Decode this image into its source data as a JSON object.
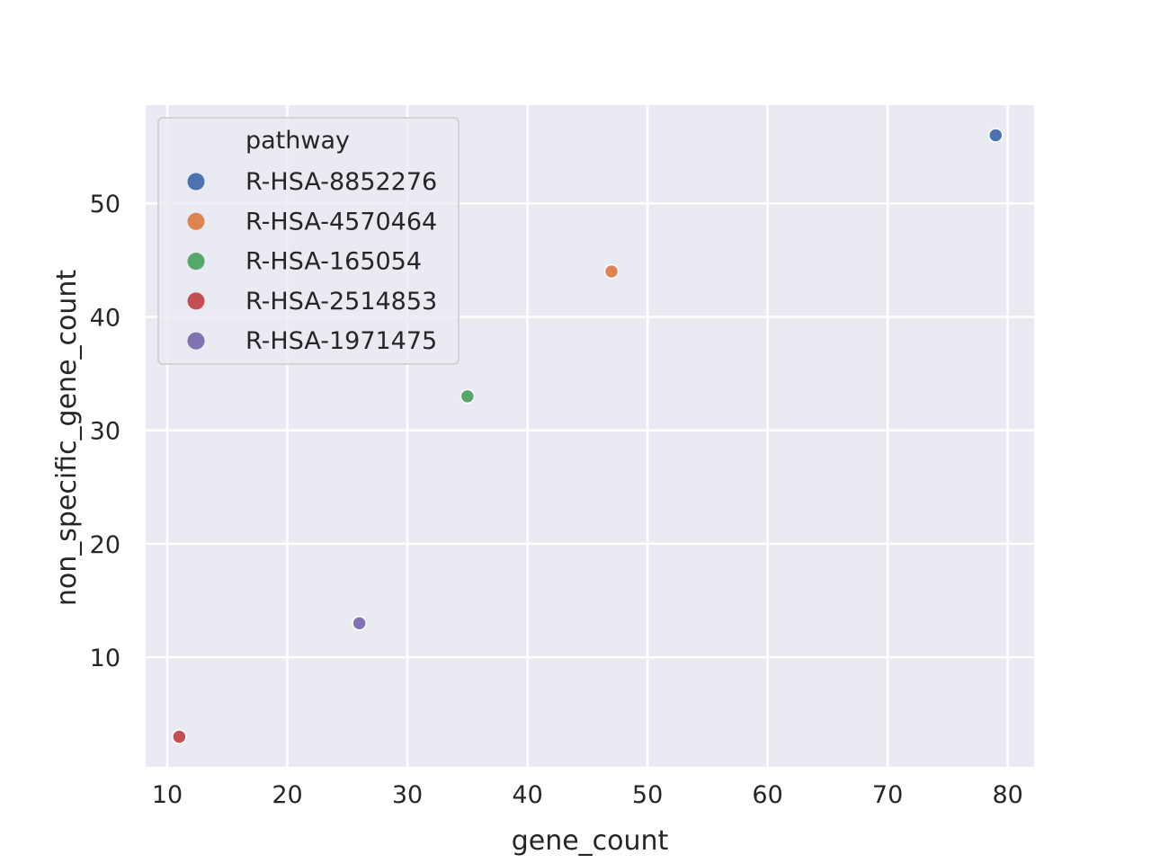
{
  "chart_data": {
    "type": "scatter",
    "xlabel": "gene_count",
    "ylabel": "non_specific_gene_count",
    "xlim": [
      8.2,
      82.2
    ],
    "ylim": [
      0.35,
      58.65
    ],
    "xticks": [
      10,
      20,
      30,
      40,
      50,
      60,
      70,
      80
    ],
    "yticks": [
      10,
      20,
      30,
      40,
      50
    ],
    "grid": true,
    "legend": {
      "title": "pathway",
      "placement": "top-left"
    },
    "series": [
      {
        "name": "R-HSA-8852276",
        "color": "#4c72b0",
        "points": [
          {
            "x": 79,
            "y": 56
          }
        ]
      },
      {
        "name": "R-HSA-4570464",
        "color": "#dd8452",
        "points": [
          {
            "x": 47,
            "y": 44
          }
        ]
      },
      {
        "name": "R-HSA-165054",
        "color": "#55a868",
        "points": [
          {
            "x": 35,
            "y": 33
          }
        ]
      },
      {
        "name": "R-HSA-2514853",
        "color": "#c44e52",
        "points": [
          {
            "x": 11,
            "y": 3
          }
        ]
      },
      {
        "name": "R-HSA-1971475",
        "color": "#8172b3",
        "points": [
          {
            "x": 26,
            "y": 13
          }
        ]
      }
    ]
  }
}
